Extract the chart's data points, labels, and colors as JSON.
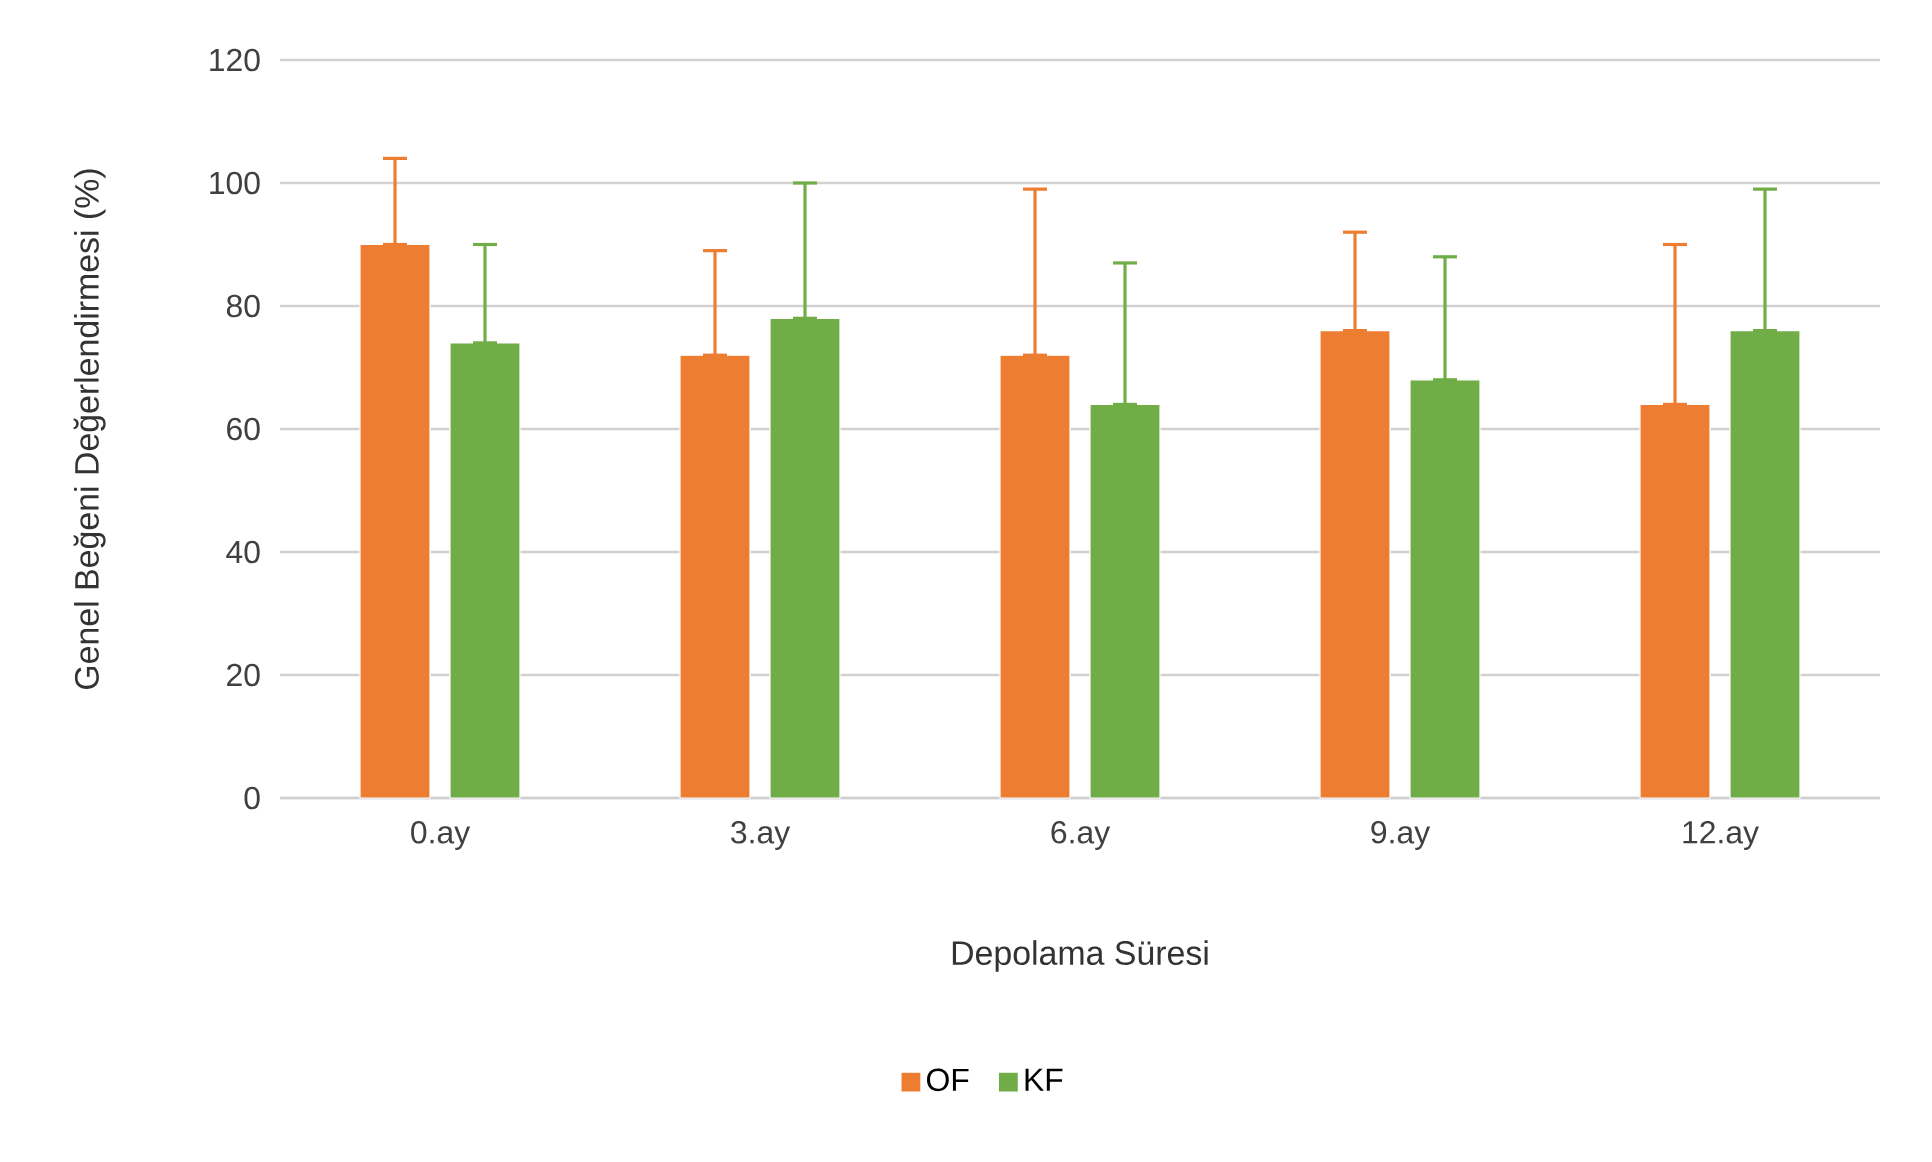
{
  "chart_data": {
    "type": "bar",
    "xlabel": "Depolama Süresi",
    "ylabel": "Genel Beğeni Değerlendirmesi (%)",
    "categories": [
      "0.ay",
      "3.ay",
      "6.ay",
      "9.ay",
      "12.ay"
    ],
    "series": [
      {
        "name": "OF",
        "color": "#ed7d31",
        "values": [
          90,
          72,
          72,
          76,
          64
        ],
        "errors": [
          [
            90,
            104
          ],
          [
            72,
            89
          ],
          [
            72,
            99
          ],
          [
            76,
            92
          ],
          [
            64,
            90
          ]
        ]
      },
      {
        "name": "KF",
        "color": "#70ad47",
        "values": [
          74,
          78,
          64,
          68,
          76
        ],
        "errors": [
          [
            74,
            90
          ],
          [
            78,
            100
          ],
          [
            64,
            87
          ],
          [
            68,
            88
          ],
          [
            76,
            99
          ]
        ]
      }
    ],
    "ylim": [
      0,
      120
    ],
    "yticks": [
      0,
      20,
      40,
      60,
      80,
      100,
      120
    ],
    "grid": "y",
    "legend": "bottom"
  }
}
